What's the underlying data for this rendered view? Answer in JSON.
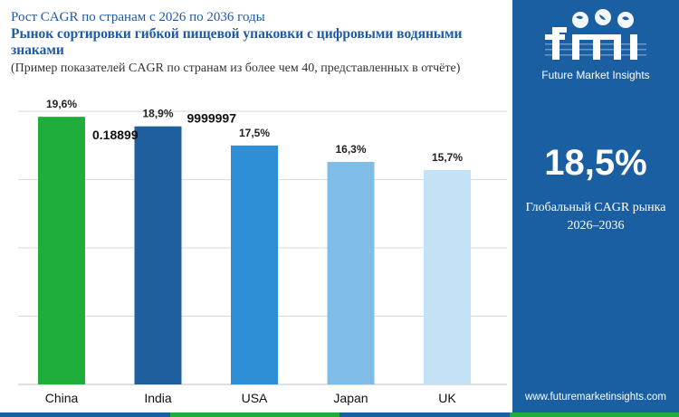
{
  "header": {
    "subtitle": "Рост CAGR по странам с 2026 по 2036 годы",
    "title": "Рынок сортировки гибкой пищевой упаковки с цифровыми водяными знаками",
    "note": "(Пример показателей CAGR по странам из более чем 40, представленных в отчёте)"
  },
  "chart_data": {
    "type": "bar",
    "title": "Рынок сортировки гибкой пищевой упаковки с цифровыми водяными знаками",
    "categories": [
      "China",
      "India",
      "USA",
      "Japan",
      "UK"
    ],
    "values": [
      19.6,
      18.9,
      17.5,
      16.3,
      15.7
    ],
    "data_labels": [
      "19,6%",
      "18,9%",
      "17,5%",
      "16,3%",
      "15,7%"
    ],
    "bar_colors": [
      "#1fae3c",
      "#1f5f9e",
      "#2e8fd6",
      "#7fbde6",
      "#c4e2f5"
    ],
    "ylim": [
      0,
      21
    ],
    "xlabel": "",
    "ylabel": "",
    "grid": true,
    "legend": "none",
    "artifact_labels": [
      {
        "text": "0.18899",
        "near": "China"
      },
      {
        "text": "9999997",
        "near": "India"
      }
    ]
  },
  "sidebar": {
    "logo_text": "fmi",
    "logo_caption": "Future Market Insights",
    "global_cagr_value": "18,5%",
    "global_cagr_label": "Глобальный CAGR рынка",
    "global_cagr_period": "2026–2036",
    "website": "www.futuremarketinsights.com"
  },
  "colors": {
    "sidebar_bg": "#1b5fa3",
    "title_blue": "#1f5aa6",
    "grid": "#d9d9d9",
    "bottom_strip": [
      "#1b5fa3",
      "#1fae3c",
      "#1b5fa3",
      "#1fae3c"
    ]
  }
}
